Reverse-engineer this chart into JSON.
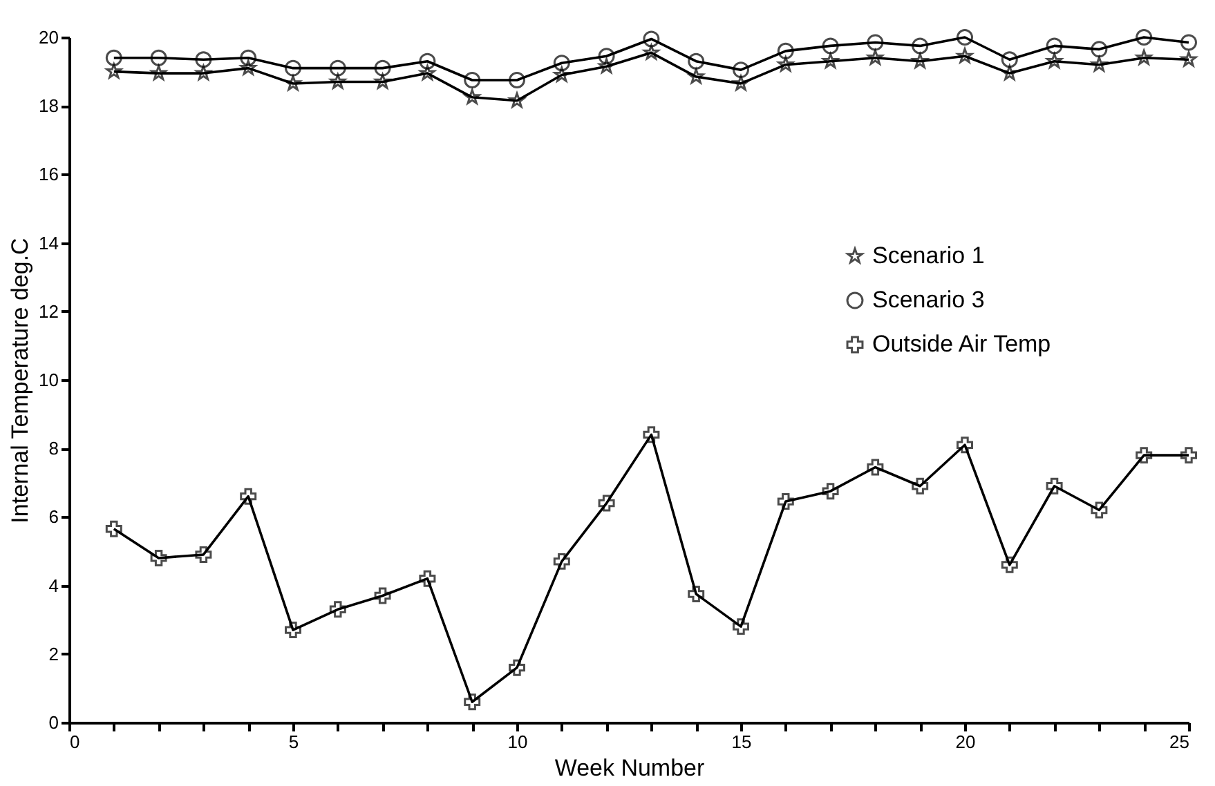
{
  "chart_data": {
    "type": "line",
    "xlabel": "Week Number",
    "ylabel": "Internal Temperature deg.C",
    "x": [
      1,
      2,
      3,
      4,
      5,
      6,
      7,
      8,
      9,
      10,
      11,
      12,
      13,
      14,
      15,
      16,
      17,
      18,
      19,
      20,
      21,
      22,
      23,
      24,
      25
    ],
    "series": [
      {
        "name": "Scenario 1",
        "color": "#000000",
        "marker": "star",
        "values": [
          19.0,
          18.95,
          18.95,
          19.1,
          18.65,
          18.7,
          18.7,
          18.95,
          18.25,
          18.15,
          18.9,
          19.15,
          19.55,
          18.85,
          18.65,
          19.2,
          19.3,
          19.4,
          19.3,
          19.45,
          18.95,
          19.3,
          19.2,
          19.4,
          19.35
        ]
      },
      {
        "name": "Scenario 3",
        "color": "#000000",
        "marker": "circle",
        "values": [
          19.4,
          19.4,
          19.35,
          19.4,
          19.1,
          19.1,
          19.1,
          19.3,
          18.75,
          18.75,
          19.25,
          19.45,
          19.95,
          19.3,
          19.05,
          19.6,
          19.75,
          19.85,
          19.75,
          20.0,
          19.35,
          19.75,
          19.65,
          20.0,
          19.85
        ]
      },
      {
        "name": "Outside Air Temp",
        "color": "#000000",
        "marker": "cross",
        "values": [
          5.65,
          4.8,
          4.9,
          6.6,
          2.7,
          3.3,
          3.7,
          4.2,
          0.6,
          1.6,
          4.7,
          6.4,
          8.4,
          3.75,
          2.8,
          6.45,
          6.75,
          7.45,
          6.9,
          8.1,
          4.6,
          6.9,
          6.2,
          7.8,
          7.8
        ]
      }
    ],
    "xlim": [
      0,
      25
    ],
    "xticks": [
      0,
      {
        "value": 1,
        "label": null
      },
      {
        "value": 2,
        "label": null
      },
      {
        "value": 3,
        "label": null
      },
      {
        "value": 4,
        "label": null
      },
      5,
      {
        "value": 6,
        "label": null
      },
      {
        "value": 7,
        "label": null
      },
      {
        "value": 8,
        "label": null
      },
      {
        "value": 9,
        "label": null
      },
      10,
      {
        "value": 11,
        "label": null
      },
      {
        "value": 12,
        "label": null
      },
      {
        "value": 13,
        "label": null
      },
      {
        "value": 14,
        "label": null
      },
      15,
      {
        "value": 16,
        "label": null
      },
      {
        "value": 17,
        "label": null
      },
      {
        "value": 18,
        "label": null
      },
      {
        "value": 19,
        "label": null
      },
      20,
      {
        "value": 21,
        "label": null
      },
      {
        "value": 22,
        "label": null
      },
      {
        "value": 23,
        "label": null
      },
      {
        "value": 24,
        "label": null
      },
      25
    ],
    "ylim": [
      0,
      20
    ],
    "yticks": [
      0,
      2,
      4,
      6,
      8,
      10,
      12,
      14,
      16,
      18,
      20
    ],
    "grid": false,
    "legend": "right",
    "line_style": "solid"
  }
}
